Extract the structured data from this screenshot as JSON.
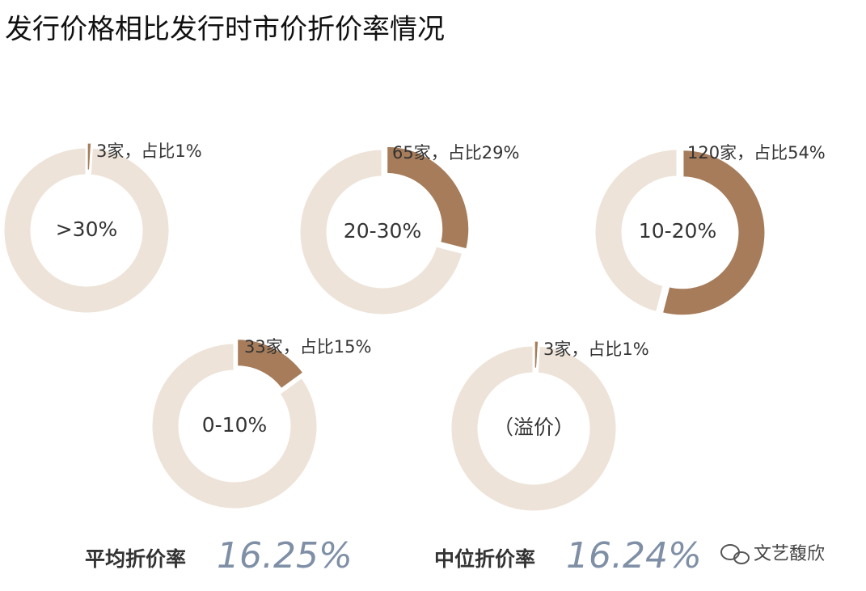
{
  "title": "发行价格相比发行时市价折价率情况",
  "chart_data": [
    {
      "type": "donut",
      "center_label": ">30%",
      "values": [
        1,
        99
      ],
      "value_labels": [
        "3家，占比1%",
        null
      ],
      "colors": [
        "#a67c5a",
        "#ede3d8"
      ]
    },
    {
      "type": "donut",
      "center_label": "20-30%",
      "values": [
        29,
        71
      ],
      "value_labels": [
        "65家，占比29%",
        null
      ],
      "colors": [
        "#a67c5a",
        "#ede3d8"
      ]
    },
    {
      "type": "donut",
      "center_label": "10-20%",
      "values": [
        54,
        46
      ],
      "value_labels": [
        "120家，占比54%",
        null
      ],
      "colors": [
        "#a67c5a",
        "#ede3d8"
      ]
    },
    {
      "type": "donut",
      "center_label": "0-10%",
      "values": [
        15,
        85
      ],
      "value_labels": [
        "33家，占比15%",
        null
      ],
      "colors": [
        "#a67c5a",
        "#ede3d8"
      ]
    },
    {
      "type": "donut",
      "center_label": "（溢价）",
      "values": [
        1,
        99
      ],
      "value_labels": [
        "3家，占比1%",
        null
      ],
      "colors": [
        "#a67c5a",
        "#ede3d8"
      ]
    }
  ],
  "summary": [
    {
      "label": "平均折价率",
      "value": "16.25%"
    },
    {
      "label": "中位折价率",
      "value": "16.24%"
    }
  ],
  "watermark": "文艺馥欣"
}
